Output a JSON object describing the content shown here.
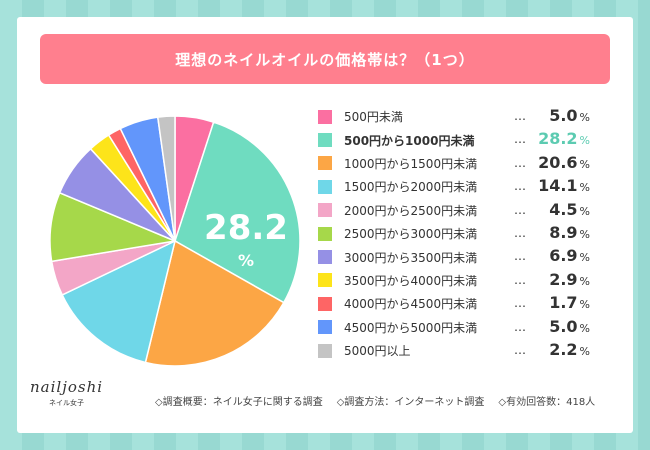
{
  "title": "理想のネイルオイルの価格帯は？（1つ）",
  "chart_data": {
    "type": "pie",
    "title": "理想のネイルオイルの価格帯は？（1つ）",
    "highlight_label": "28.2",
    "highlight_unit": "%",
    "slices": [
      {
        "label": "500円未満",
        "value": 5.0,
        "color": "#fb6fa1"
      },
      {
        "label": "500円から1000円未満",
        "value": 28.2,
        "color": "#6fdcc0"
      },
      {
        "label": "1000円から1500円未満",
        "value": 20.6,
        "color": "#fca645"
      },
      {
        "label": "1500円から2000円未満",
        "value": 14.1,
        "color": "#6fd7e8"
      },
      {
        "label": "2000円から2500円未満",
        "value": 4.5,
        "color": "#f3a6c7"
      },
      {
        "label": "2500円から3000円未満",
        "value": 8.9,
        "color": "#a6d84a"
      },
      {
        "label": "3000円から3500円未満",
        "value": 6.9,
        "color": "#9590e5"
      },
      {
        "label": "3500円から4000円未満",
        "value": 2.9,
        "color": "#fde41a"
      },
      {
        "label": "4000円から4500円未満",
        "value": 1.7,
        "color": "#fe6565"
      },
      {
        "label": "4500円から5000円未満",
        "value": 5.0,
        "color": "#6296fb"
      },
      {
        "label": "5000円以上",
        "value": 2.2,
        "color": "#c4c4c4"
      }
    ],
    "value_suffix": "%",
    "dots": "…"
  },
  "logo": {
    "main": "nailjoshi",
    "sub": "ネイル女子"
  },
  "footer": {
    "summary": "◇調査概要：ネイル女子に関する調査",
    "method": "◇調査方法：インターネット調査",
    "count": "◇有効回答数：418人"
  }
}
